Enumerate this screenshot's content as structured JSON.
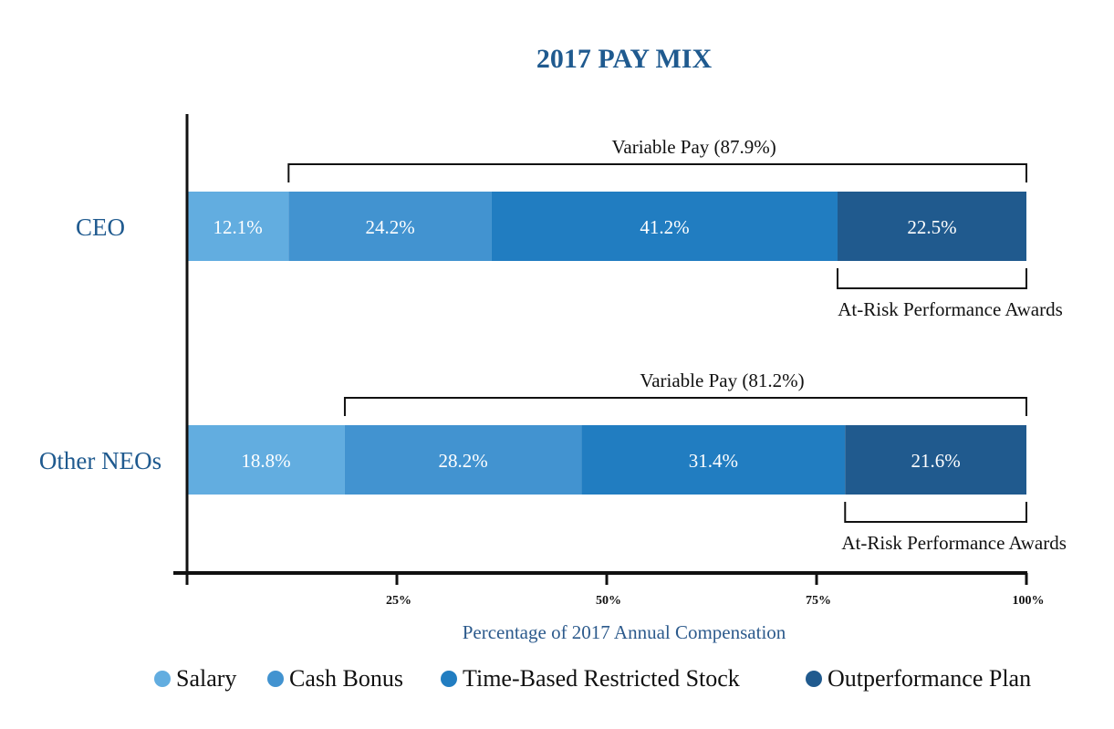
{
  "chart_data": {
    "type": "bar",
    "orientation": "horizontal",
    "stacked": true,
    "title": "2017 PAY MIX",
    "xlabel": "Percentage of 2017 Annual Compensation",
    "xlim": [
      0,
      100
    ],
    "x_ticks": [
      "25%",
      "50%",
      "75%",
      "100%"
    ],
    "x_tick_values": [
      25,
      50,
      75,
      100
    ],
    "categories": [
      "CEO",
      "Other NEOs"
    ],
    "series": [
      {
        "name": "Salary",
        "color": "#62ade0",
        "values": [
          12.1,
          18.8
        ],
        "labels": [
          "12.1%",
          "18.8%"
        ]
      },
      {
        "name": "Cash Bonus",
        "color": "#4293d0",
        "values": [
          24.2,
          28.2
        ],
        "labels": [
          "24.2%",
          "28.2%"
        ]
      },
      {
        "name": "Time-Based Restricted Stock",
        "color": "#217dc1",
        "values": [
          41.2,
          31.4
        ],
        "labels": [
          "41.2%",
          "31.4%"
        ]
      },
      {
        "name": "Outperformance Plan",
        "color": "#205a8e",
        "values": [
          22.5,
          21.6
        ],
        "labels": [
          "22.5%",
          "21.6%"
        ]
      }
    ],
    "annotations": [
      {
        "category": "CEO",
        "variable_pay": "Variable Pay (87.9%)",
        "at_risk": "At-Risk Performance Awards"
      },
      {
        "category": "Other NEOs",
        "variable_pay": "Variable Pay (81.2%)",
        "at_risk": "At-Risk Performance Awards"
      }
    ],
    "legend_position": "bottom",
    "grid": false,
    "title_color": "#1f5a8f"
  }
}
